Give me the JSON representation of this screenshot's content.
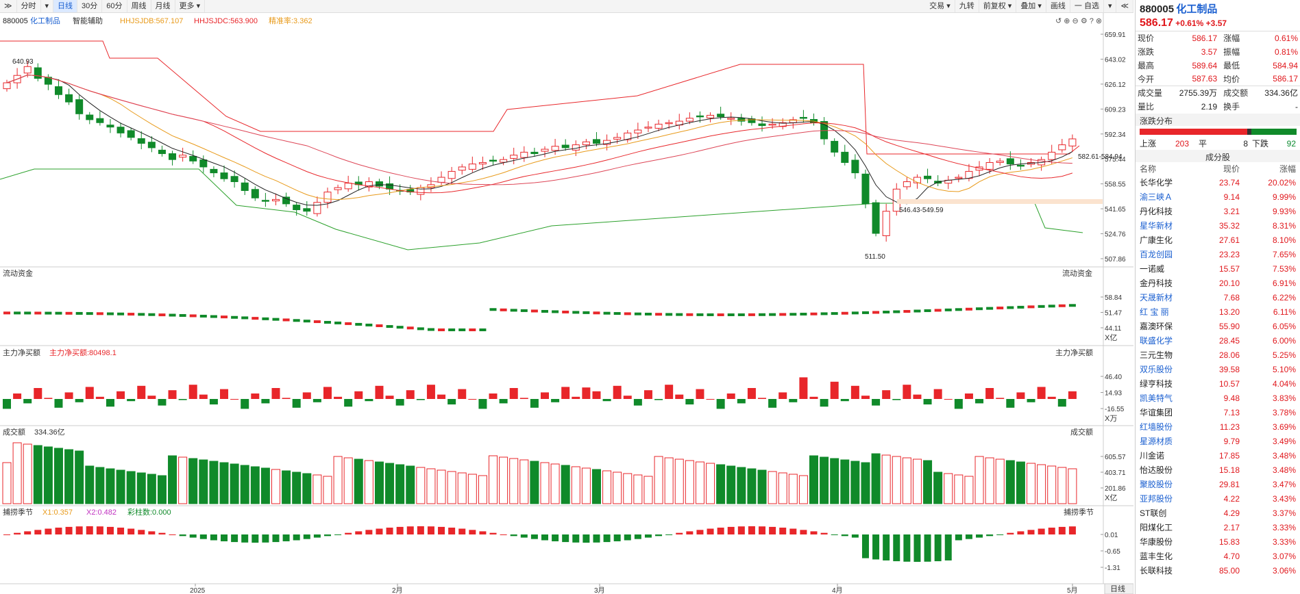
{
  "toolbar": {
    "items": [
      "分时",
      "日线",
      "30分",
      "60分",
      "周线",
      "月线",
      "更多"
    ],
    "right": [
      "交易",
      "九转",
      "前复权",
      "叠加",
      "画线",
      "一 自选"
    ]
  },
  "panel1": {
    "code": "880005",
    "name": "化工制品",
    "assist": "智能辅助",
    "ind1": "HHJSJDB:567.107",
    "ind2": "HHJSJDC:563.900",
    "ind3": "精准率:3.362",
    "ticks": [
      "659.91",
      "643.02",
      "626.12",
      "609.23",
      "592.34",
      "575.44",
      "558.55",
      "541.65",
      "524.76",
      "507.86"
    ],
    "hi_label": "640.93",
    "lo_label": "511.50",
    "zone1": "582.61-584.94",
    "zone2": "546.43-549.59"
  },
  "panel2": {
    "title": "流动资金",
    "right_title": "流动资金",
    "ticks": [
      "58.84",
      "51.47",
      "44.11"
    ],
    "unit": "X亿"
  },
  "panel3": {
    "title": "主力净买额",
    "value": "主力净买额:80498.1",
    "right_title": "主力净买额",
    "ticks": [
      "46.40",
      "14.93",
      "-16.55"
    ],
    "unit": "X万"
  },
  "panel4": {
    "title": "成交额",
    "value": "334.36亿",
    "right_title": "成交额",
    "ticks": [
      "605.57",
      "403.71",
      "201.86"
    ],
    "unit": "X亿"
  },
  "panel5": {
    "title": "捕捞季节",
    "x1": "X1:0.357",
    "x2": "X2:0.482",
    "bars": "彩柱数:0.000",
    "right_title": "捕捞季节",
    "ticks": [
      "0.01",
      "-0.65",
      "-1.31"
    ]
  },
  "xaxis": [
    "2025",
    "2月",
    "3月",
    "4月",
    "5月"
  ],
  "period_button": "日线",
  "quote": {
    "code": "880005",
    "name": "化工制品",
    "price": "586.17",
    "pct": "+0.61%",
    "chg": "+3.57",
    "rows": [
      [
        "现价",
        "586.17",
        "涨幅",
        "0.61%"
      ],
      [
        "涨跌",
        "3.57",
        "振幅",
        "0.81%"
      ],
      [
        "最高",
        "589.64",
        "最低",
        "584.94"
      ],
      [
        "今开",
        "587.63",
        "均价",
        "586.17"
      ],
      [
        "成交量",
        "2755.39万",
        "成交额",
        "334.36亿"
      ],
      [
        "量比",
        "2.19",
        "换手",
        "-"
      ]
    ],
    "dist_title": "涨跌分布",
    "up_label": "上涨",
    "up": "203",
    "flat_label": "平",
    "flat": "8",
    "down_label": "下跌",
    "down": "92",
    "comp_title": "成分股",
    "comp_cols": [
      "名称",
      "现价",
      "涨幅"
    ],
    "components": [
      {
        "name": "长华化学",
        "price": "23.74",
        "pct": "20.02%",
        "blue": false
      },
      {
        "name": "渝三峡Ａ",
        "price": "9.14",
        "pct": "9.99%",
        "blue": true
      },
      {
        "name": "丹化科技",
        "price": "3.21",
        "pct": "9.93%",
        "blue": false
      },
      {
        "name": "星华新材",
        "price": "35.32",
        "pct": "8.31%",
        "blue": true
      },
      {
        "name": "广康生化",
        "price": "27.61",
        "pct": "8.10%",
        "blue": false
      },
      {
        "name": "百龙创园",
        "price": "23.23",
        "pct": "7.65%",
        "blue": true
      },
      {
        "name": "一诺威",
        "price": "15.57",
        "pct": "7.53%",
        "blue": false
      },
      {
        "name": "金丹科技",
        "price": "20.10",
        "pct": "6.91%",
        "blue": false
      },
      {
        "name": "天晟新材",
        "price": "7.68",
        "pct": "6.22%",
        "blue": true
      },
      {
        "name": "红 宝 丽",
        "price": "13.20",
        "pct": "6.11%",
        "blue": true
      },
      {
        "name": "嘉澳环保",
        "price": "55.90",
        "pct": "6.05%",
        "blue": false
      },
      {
        "name": "联盛化学",
        "price": "28.45",
        "pct": "6.00%",
        "blue": true
      },
      {
        "name": "三元生物",
        "price": "28.06",
        "pct": "5.25%",
        "blue": false
      },
      {
        "name": "双乐股份",
        "price": "39.58",
        "pct": "5.10%",
        "blue": true
      },
      {
        "name": "绿亨科技",
        "price": "10.57",
        "pct": "4.04%",
        "blue": false
      },
      {
        "name": "凯美特气",
        "price": "9.48",
        "pct": "3.83%",
        "blue": true
      },
      {
        "name": "华谊集团",
        "price": "7.13",
        "pct": "3.78%",
        "blue": false
      },
      {
        "name": "红墙股份",
        "price": "11.23",
        "pct": "3.69%",
        "blue": true
      },
      {
        "name": "星源材质",
        "price": "9.79",
        "pct": "3.49%",
        "blue": true
      },
      {
        "name": "川金诺",
        "price": "17.85",
        "pct": "3.48%",
        "blue": false
      },
      {
        "name": "怡达股份",
        "price": "15.18",
        "pct": "3.48%",
        "blue": false
      },
      {
        "name": "聚胶股份",
        "price": "29.81",
        "pct": "3.47%",
        "blue": true
      },
      {
        "name": "亚邦股份",
        "price": "4.22",
        "pct": "3.43%",
        "blue": true
      },
      {
        "name": "ST联创",
        "price": "4.29",
        "pct": "3.37%",
        "blue": false
      },
      {
        "name": "阳煤化工",
        "price": "2.17",
        "pct": "3.33%",
        "blue": false
      },
      {
        "name": "华康股份",
        "price": "15.83",
        "pct": "3.33%",
        "blue": false
      },
      {
        "name": "蓝丰生化",
        "price": "4.70",
        "pct": "3.07%",
        "blue": false
      },
      {
        "name": "长联科技",
        "price": "85.00",
        "pct": "3.06%",
        "blue": false
      }
    ]
  },
  "colors": {
    "up": "#e8262a",
    "down": "#108a2a",
    "ma5": "#222222",
    "ma10": "#e89a1a",
    "ma20": "#e8262a",
    "band": "#2aa02a",
    "blue": "#1a5fd0"
  },
  "chart_data": {
    "type": "candlestick",
    "closes": [
      627,
      632,
      638,
      630,
      626,
      619,
      614,
      606,
      602,
      600,
      597,
      593,
      590,
      586,
      583,
      579,
      575,
      578,
      574,
      570,
      566,
      562,
      560,
      554,
      549,
      547,
      548,
      545,
      541,
      540,
      546,
      553,
      556,
      559,
      558,
      560,
      557,
      555,
      554,
      553,
      556,
      558,
      563,
      567,
      570,
      572,
      573,
      574,
      575,
      578,
      580,
      579,
      582,
      584,
      583,
      585,
      587,
      586,
      588,
      590,
      593,
      595,
      597,
      599,
      600,
      601,
      603,
      604,
      605,
      604,
      603,
      601,
      600,
      598,
      599,
      600,
      602,
      603,
      600,
      589,
      580,
      573,
      566,
      545,
      525,
      540,
      555,
      560,
      563,
      562,
      559,
      561,
      563,
      567,
      570,
      573,
      574,
      572,
      571,
      573,
      575,
      580,
      585,
      589
    ],
    "ylim": [
      507.86,
      659.91
    ]
  }
}
